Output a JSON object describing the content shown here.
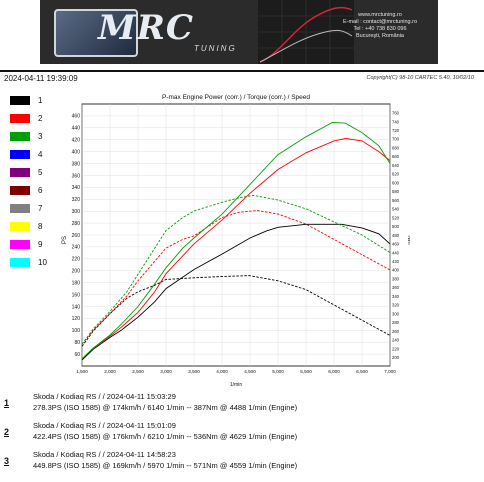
{
  "header": {
    "logo_text": "MRC",
    "logo_sub": "TUNING",
    "contact_lines": [
      "www.mrctuning.ro",
      "E-mail : contact@mrctuning.ro",
      "Tel : +40 738 830 096",
      "Bucureşti, România"
    ]
  },
  "timestamp": "2024-04-11 19:39:09",
  "copyright": "Copyright(C) 98-10 CARTEC 5.40, 10/02/10",
  "legend": [
    {
      "num": "1",
      "color": "#000000"
    },
    {
      "num": "2",
      "color": "#ff0000"
    },
    {
      "num": "3",
      "color": "#00a000"
    },
    {
      "num": "4",
      "color": "#0000ff"
    },
    {
      "num": "5",
      "color": "#800080"
    },
    {
      "num": "6",
      "color": "#800000"
    },
    {
      "num": "7",
      "color": "#808080"
    },
    {
      "num": "8",
      "color": "#ffff00"
    },
    {
      "num": "9",
      "color": "#ff00ff"
    },
    {
      "num": "10",
      "color": "#00ffff"
    }
  ],
  "chart_data": {
    "type": "line",
    "title": "P-max Engine Power (corr.) / Torque (corr.) / Speed",
    "xlabel": "1/min",
    "ylabel": "PS",
    "y2label": "Nm",
    "xlim": [
      1500,
      7000
    ],
    "ylim": [
      40,
      480
    ],
    "y2lim": [
      180,
      780
    ],
    "x_ticks": [
      "1,500",
      "2,000",
      "2,500",
      "3,000",
      "3,500",
      "4,000",
      "4,500",
      "5,000",
      "5,500",
      "6,000",
      "6,500",
      "7,000"
    ],
    "y_ticks": [
      60,
      80,
      100,
      120,
      140,
      160,
      180,
      200,
      220,
      240,
      260,
      280,
      300,
      320,
      340,
      360,
      380,
      400,
      420,
      440,
      460
    ],
    "y2_ticks": [
      200,
      220,
      240,
      260,
      280,
      300,
      320,
      340,
      360,
      380,
      400,
      420,
      440,
      460,
      480,
      500,
      520,
      540,
      560,
      580,
      600,
      620,
      640,
      660,
      680,
      700,
      720,
      740,
      760
    ],
    "grid": true,
    "series": [
      {
        "name": "1",
        "kind": "power",
        "color": "#000000",
        "x": [
          1500,
          1700,
          2000,
          2200,
          2500,
          2800,
          3000,
          3500,
          4000,
          4500,
          4800,
          5000,
          5500,
          6000,
          6140,
          6500,
          6800,
          7000
        ],
        "y": [
          50,
          68,
          88,
          100,
          122,
          148,
          170,
          202,
          228,
          255,
          267,
          273,
          278,
          278,
          278,
          272,
          262,
          245
        ]
      },
      {
        "name": "1",
        "kind": "torque",
        "color": "#000000",
        "x": [
          1500,
          1700,
          2000,
          2300,
          2500,
          2800,
          3000,
          3500,
          4000,
          4488,
          5000,
          5500,
          6000,
          6500,
          7000
        ],
        "y": [
          225,
          260,
          300,
          335,
          350,
          365,
          378,
          382,
          385,
          387,
          375,
          355,
          320,
          285,
          250
        ]
      },
      {
        "name": "2",
        "kind": "power",
        "color": "#ff0000",
        "x": [
          1500,
          1700,
          2000,
          2200,
          2500,
          2800,
          3000,
          3300,
          3500,
          4000,
          4500,
          5000,
          5500,
          6000,
          6210,
          6500,
          6800,
          7000
        ],
        "y": [
          52,
          70,
          90,
          105,
          130,
          165,
          195,
          225,
          245,
          285,
          330,
          370,
          398,
          418,
          422,
          418,
          400,
          385
        ]
      },
      {
        "name": "2",
        "kind": "torque",
        "color": "#ff0000",
        "x": [
          1500,
          1700,
          2000,
          2300,
          2500,
          2800,
          3000,
          3300,
          3500,
          4000,
          4300,
          4629,
          5000,
          5500,
          6000,
          6500,
          7000
        ],
        "y": [
          230,
          262,
          300,
          340,
          375,
          420,
          450,
          470,
          478,
          520,
          532,
          536,
          528,
          505,
          470,
          435,
          400
        ]
      },
      {
        "name": "3",
        "kind": "power",
        "color": "#00a000",
        "x": [
          1500,
          1700,
          2000,
          2200,
          2500,
          2800,
          3000,
          3300,
          3500,
          4000,
          4500,
          5000,
          5500,
          5970,
          6200,
          6500,
          6800,
          7000
        ],
        "y": [
          52,
          70,
          92,
          110,
          140,
          178,
          205,
          238,
          255,
          295,
          345,
          395,
          425,
          449,
          448,
          432,
          410,
          380
        ]
      },
      {
        "name": "3",
        "kind": "torque",
        "color": "#00a000",
        "x": [
          1500,
          1700,
          2000,
          2300,
          2500,
          2800,
          3000,
          3300,
          3500,
          4000,
          4300,
          4559,
          5000,
          5500,
          6000,
          6500,
          7000
        ],
        "y": [
          230,
          265,
          305,
          350,
          390,
          450,
          490,
          520,
          535,
          555,
          565,
          571,
          560,
          540,
          510,
          480,
          440
        ]
      }
    ]
  },
  "runs": [
    {
      "index": "1",
      "line1": "Skoda / Kodiaq RS /  / 2024-04-11 15:03:29",
      "line2": "278.3PS (ISO 1585) @ 174km/h / 6140 1/min -- 387Nm @ 4488 1/min (Engine)"
    },
    {
      "index": "2",
      "line1": "Skoda / Kodiaq RS /  / 2024-04-11 15:01:09",
      "line2": "422.4PS (ISO 1585) @ 176km/h / 6210 1/min -- 536Nm @ 4629 1/min (Engine)"
    },
    {
      "index": "3",
      "line1": "Skoda / Kodiaq RS /  / 2024-04-11 14:58:23",
      "line2": "449.8PS (ISO 1585) @ 169km/h / 5970 1/min -- 571Nm @ 4559 1/min (Engine)"
    }
  ]
}
